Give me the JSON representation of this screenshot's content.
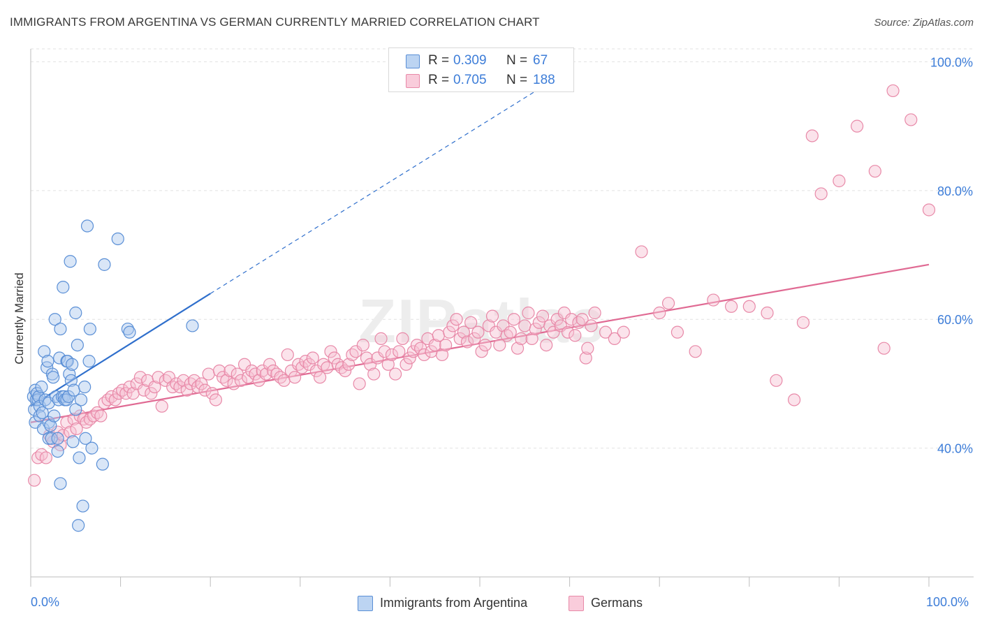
{
  "title": "IMMIGRANTS FROM ARGENTINA VS GERMAN CURRENTLY MARRIED CORRELATION CHART",
  "source": "Source: ZipAtlas.com",
  "watermark": "ZIPatlas",
  "legend": {
    "series1": {
      "r_label": "R =",
      "r_value": "0.309",
      "n_label": "N =",
      "n_value": "67"
    },
    "series2": {
      "r_label": "R =",
      "r_value": "0.705",
      "n_label": "N =",
      "n_value": "188"
    }
  },
  "colors": {
    "blue_fill": "#aac8ee",
    "blue_stroke": "#5a8fd6",
    "blue_line": "#2f6fcc",
    "pink_fill": "#f7c2d3",
    "pink_stroke": "#e889a8",
    "pink_line": "#e06a93",
    "axis_text": "#3d7dd8",
    "grid": "#e2e2e2"
  },
  "chart_data": {
    "type": "scatter",
    "title": "IMMIGRANTS FROM ARGENTINA VS GERMAN CURRENTLY MARRIED CORRELATION CHART",
    "xlabel": "",
    "ylabel": "Currently Married",
    "xlim": [
      0,
      100
    ],
    "ylim": [
      20,
      102
    ],
    "x_tick_labels": [
      "0.0%",
      "100.0%"
    ],
    "y_ticks": [
      40,
      60,
      80,
      100
    ],
    "y_tick_labels": [
      "40.0%",
      "60.0%",
      "80.0%",
      "100.0%"
    ],
    "legend_position": "bottom-center",
    "series": [
      {
        "name": "Immigrants from Argentina",
        "R": 0.309,
        "N": 67,
        "trend_solid": [
          [
            0,
            46.5
          ],
          [
            20,
            64
          ]
        ],
        "trend_dashed": [
          [
            20,
            64
          ],
          [
            58,
            97
          ]
        ],
        "points": [
          [
            0.3,
            48
          ],
          [
            0.4,
            46
          ],
          [
            0.5,
            44
          ],
          [
            0.5,
            49
          ],
          [
            0.6,
            47.5
          ],
          [
            0.7,
            48.5
          ],
          [
            0.8,
            47.5
          ],
          [
            0.9,
            48
          ],
          [
            1,
            46.5
          ],
          [
            1,
            45
          ],
          [
            1.2,
            49.5
          ],
          [
            1.3,
            45.5
          ],
          [
            1.4,
            43
          ],
          [
            1.5,
            55
          ],
          [
            1.6,
            47.5
          ],
          [
            1.8,
            52.5
          ],
          [
            1.9,
            53.5
          ],
          [
            2,
            47
          ],
          [
            2,
            44
          ],
          [
            2,
            41.5
          ],
          [
            2.2,
            43.5
          ],
          [
            2.3,
            41.5
          ],
          [
            2.4,
            51.5
          ],
          [
            2.5,
            51
          ],
          [
            2.6,
            45
          ],
          [
            2.7,
            60
          ],
          [
            2.8,
            48
          ],
          [
            3,
            39.5
          ],
          [
            3,
            41.5
          ],
          [
            3.1,
            47.5
          ],
          [
            3.2,
            54
          ],
          [
            3.3,
            58.5
          ],
          [
            3.3,
            34.5
          ],
          [
            3.5,
            48
          ],
          [
            3.6,
            65
          ],
          [
            3.7,
            48
          ],
          [
            3.8,
            47.5
          ],
          [
            4,
            53.5
          ],
          [
            4,
            47.5
          ],
          [
            4.1,
            53.5
          ],
          [
            4.2,
            48
          ],
          [
            4.3,
            51.5
          ],
          [
            4.4,
            69
          ],
          [
            4.5,
            50.5
          ],
          [
            4.6,
            53
          ],
          [
            4.7,
            41
          ],
          [
            4.8,
            49
          ],
          [
            5,
            61
          ],
          [
            5,
            46
          ],
          [
            5.2,
            56
          ],
          [
            5.3,
            28
          ],
          [
            5.4,
            38.5
          ],
          [
            5.6,
            47.5
          ],
          [
            5.8,
            31
          ],
          [
            6,
            49.5
          ],
          [
            6.1,
            41.5
          ],
          [
            6.3,
            74.5
          ],
          [
            6.5,
            53.5
          ],
          [
            6.6,
            58.5
          ],
          [
            6.8,
            40
          ],
          [
            8,
            37.5
          ],
          [
            8.2,
            68.5
          ],
          [
            9.7,
            72.5
          ],
          [
            10.8,
            58.5
          ],
          [
            11,
            58
          ],
          [
            18,
            59
          ]
        ]
      },
      {
        "name": "Germans",
        "R": 0.705,
        "N": 188,
        "trend": [
          [
            0,
            44
          ],
          [
            100,
            68.5
          ]
        ],
        "points": [
          [
            0.4,
            35
          ],
          [
            0.8,
            38.5
          ],
          [
            1.2,
            39
          ],
          [
            1.7,
            38.5
          ],
          [
            2.1,
            42
          ],
          [
            2.5,
            41
          ],
          [
            3,
            42.5
          ],
          [
            3.3,
            40.5
          ],
          [
            3.6,
            42
          ],
          [
            4,
            44
          ],
          [
            4.4,
            42.5
          ],
          [
            4.8,
            44.5
          ],
          [
            5.1,
            43
          ],
          [
            5.5,
            45
          ],
          [
            5.9,
            44.5
          ],
          [
            6.2,
            44
          ],
          [
            6.6,
            44.5
          ],
          [
            7,
            45
          ],
          [
            7.4,
            45.5
          ],
          [
            7.8,
            45
          ],
          [
            8.2,
            47
          ],
          [
            8.6,
            47.5
          ],
          [
            9,
            48
          ],
          [
            9.4,
            47.5
          ],
          [
            9.8,
            48.5
          ],
          [
            10.2,
            49
          ],
          [
            10.6,
            48.5
          ],
          [
            11,
            49.5
          ],
          [
            11.4,
            48.5
          ],
          [
            11.8,
            50
          ],
          [
            12.2,
            51
          ],
          [
            12.6,
            49
          ],
          [
            13,
            50.5
          ],
          [
            13.4,
            48.5
          ],
          [
            13.8,
            49.5
          ],
          [
            14.2,
            51
          ],
          [
            14.6,
            46.5
          ],
          [
            15,
            50.5
          ],
          [
            15.4,
            51
          ],
          [
            15.8,
            49.5
          ],
          [
            16.2,
            50
          ],
          [
            16.6,
            49.5
          ],
          [
            17,
            50.5
          ],
          [
            17.4,
            49
          ],
          [
            17.8,
            50
          ],
          [
            18.2,
            50.5
          ],
          [
            18.6,
            49.5
          ],
          [
            19,
            50
          ],
          [
            19.4,
            49
          ],
          [
            19.8,
            51.5
          ],
          [
            20.2,
            48.5
          ],
          [
            20.6,
            47.5
          ],
          [
            21,
            52
          ],
          [
            21.4,
            51
          ],
          [
            21.8,
            50.5
          ],
          [
            22.2,
            52
          ],
          [
            22.6,
            50
          ],
          [
            23,
            51.5
          ],
          [
            23.4,
            50.5
          ],
          [
            23.8,
            53
          ],
          [
            24.2,
            51
          ],
          [
            24.6,
            52
          ],
          [
            25,
            51.5
          ],
          [
            25.4,
            50.5
          ],
          [
            25.8,
            52
          ],
          [
            26.2,
            51.5
          ],
          [
            26.6,
            53
          ],
          [
            27,
            52
          ],
          [
            27.4,
            51.5
          ],
          [
            27.8,
            51
          ],
          [
            28.2,
            50.5
          ],
          [
            28.6,
            54.5
          ],
          [
            29,
            52
          ],
          [
            29.4,
            51
          ],
          [
            29.8,
            53
          ],
          [
            30.2,
            52.5
          ],
          [
            30.6,
            53.5
          ],
          [
            31,
            53
          ],
          [
            31.4,
            54
          ],
          [
            31.8,
            52
          ],
          [
            32.2,
            51
          ],
          [
            32.6,
            53
          ],
          [
            33,
            52.5
          ],
          [
            33.4,
            55
          ],
          [
            33.8,
            54
          ],
          [
            34.2,
            53
          ],
          [
            34.6,
            52.5
          ],
          [
            35,
            52
          ],
          [
            35.4,
            53
          ],
          [
            35.8,
            54.5
          ],
          [
            36.2,
            55
          ],
          [
            36.6,
            50
          ],
          [
            37,
            56
          ],
          [
            37.4,
            54
          ],
          [
            37.8,
            53
          ],
          [
            38.2,
            51.5
          ],
          [
            38.6,
            54
          ],
          [
            39,
            57
          ],
          [
            39.4,
            55
          ],
          [
            39.8,
            53
          ],
          [
            40.2,
            54.5
          ],
          [
            40.6,
            51.5
          ],
          [
            41,
            55
          ],
          [
            41.4,
            57
          ],
          [
            41.8,
            53
          ],
          [
            42.2,
            54
          ],
          [
            42.6,
            55
          ],
          [
            43,
            56
          ],
          [
            43.4,
            55.5
          ],
          [
            43.8,
            54.5
          ],
          [
            44.2,
            57
          ],
          [
            44.6,
            55
          ],
          [
            45,
            56
          ],
          [
            45.4,
            57.5
          ],
          [
            45.8,
            54.5
          ],
          [
            46.2,
            56
          ],
          [
            46.6,
            58
          ],
          [
            47,
            59
          ],
          [
            47.4,
            60
          ],
          [
            47.8,
            57
          ],
          [
            48.2,
            58
          ],
          [
            48.6,
            56.5
          ],
          [
            49,
            59.5
          ],
          [
            49.4,
            57
          ],
          [
            49.8,
            58
          ],
          [
            50.2,
            55
          ],
          [
            50.6,
            56
          ],
          [
            51,
            59
          ],
          [
            51.4,
            60.5
          ],
          [
            51.8,
            58
          ],
          [
            52.2,
            56
          ],
          [
            52.6,
            59
          ],
          [
            53,
            57.5
          ],
          [
            53.4,
            58
          ],
          [
            53.8,
            60
          ],
          [
            54.2,
            55.5
          ],
          [
            54.6,
            57
          ],
          [
            55,
            59
          ],
          [
            55.4,
            61
          ],
          [
            55.8,
            57
          ],
          [
            56.2,
            58.5
          ],
          [
            56.6,
            59.5
          ],
          [
            57,
            60.5
          ],
          [
            57.4,
            56
          ],
          [
            57.8,
            59
          ],
          [
            58.2,
            58
          ],
          [
            58.6,
            60
          ],
          [
            59,
            59
          ],
          [
            59.4,
            61
          ],
          [
            59.8,
            58
          ],
          [
            60.2,
            60
          ],
          [
            60.6,
            57.5
          ],
          [
            61,
            59.5
          ],
          [
            61.4,
            60
          ],
          [
            61.8,
            54
          ],
          [
            62,
            55.5
          ],
          [
            62.4,
            59
          ],
          [
            62.8,
            61
          ],
          [
            64,
            58
          ],
          [
            65,
            57
          ],
          [
            66,
            58
          ],
          [
            68,
            70.5
          ],
          [
            70,
            61
          ],
          [
            71,
            62.5
          ],
          [
            72,
            58
          ],
          [
            74,
            55
          ],
          [
            76,
            63
          ],
          [
            78,
            62
          ],
          [
            80,
            62
          ],
          [
            82,
            61
          ],
          [
            83,
            50.5
          ],
          [
            85,
            47.5
          ],
          [
            86,
            59.5
          ],
          [
            87,
            88.5
          ],
          [
            88,
            79.5
          ],
          [
            90,
            81.5
          ],
          [
            92,
            90
          ],
          [
            94,
            83
          ],
          [
            95,
            55.5
          ],
          [
            96,
            95.5
          ],
          [
            98,
            91
          ],
          [
            100,
            77
          ]
        ]
      }
    ]
  },
  "bottom_legend": [
    "Immigrants from Argentina",
    "Germans"
  ]
}
